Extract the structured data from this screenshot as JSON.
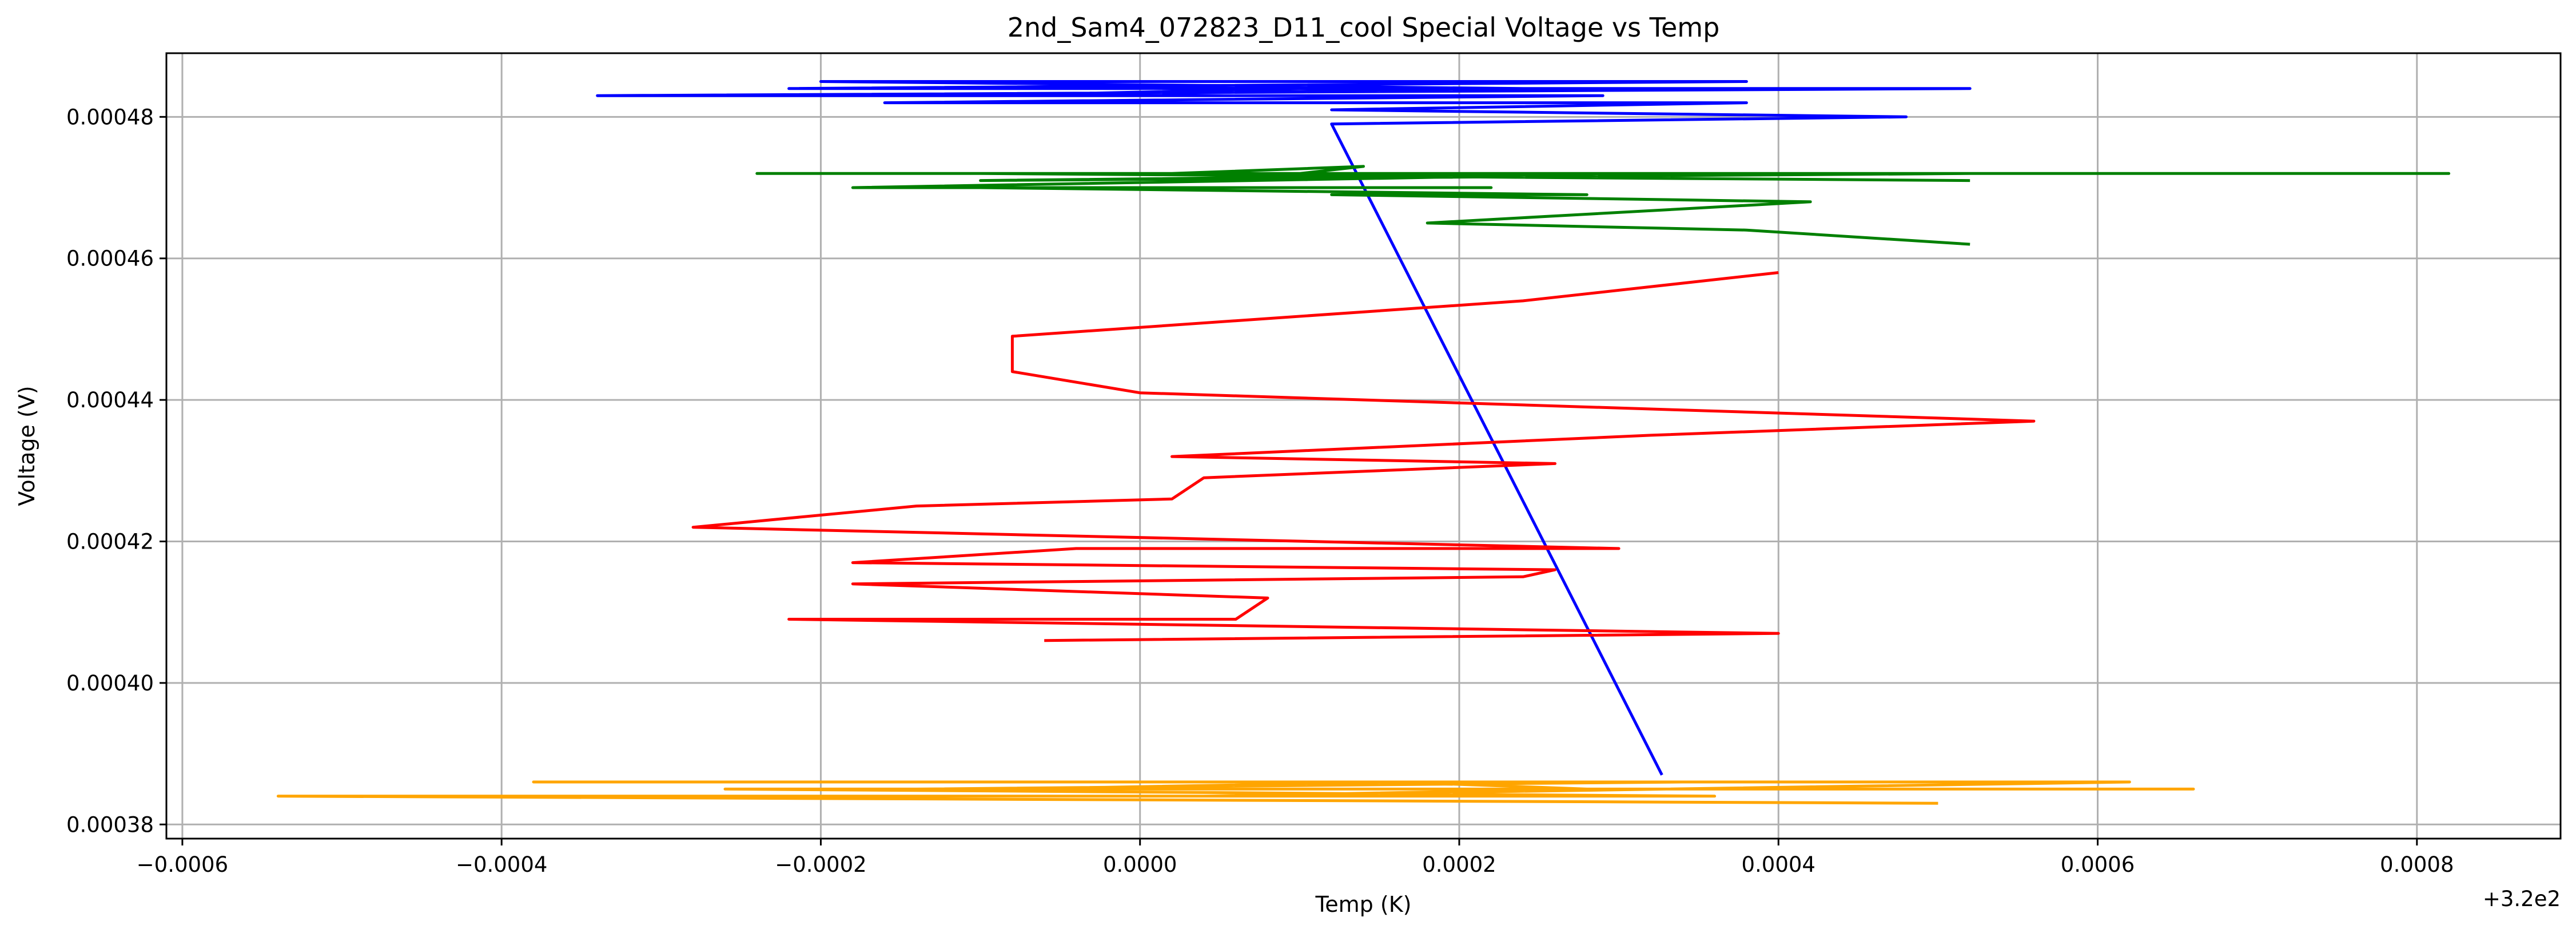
{
  "chart_data": {
    "type": "line",
    "title": "2nd_Sam4_072823_D11_cool Special Voltage vs Temp",
    "xlabel": "Temp (K)",
    "ylabel": "Voltage (V)",
    "x_offset_label": "+3.2e2",
    "xlim": [
      -0.00061,
      0.00089
    ],
    "ylim": [
      0.000378,
      0.000489
    ],
    "grid": true,
    "x_ticks": [
      {
        "value": -0.0006,
        "label": "−0.0006"
      },
      {
        "value": -0.0004,
        "label": "−0.0004"
      },
      {
        "value": -0.0002,
        "label": "−0.0002"
      },
      {
        "value": 0.0,
        "label": "0.0000"
      },
      {
        "value": 0.0002,
        "label": "0.0002"
      },
      {
        "value": 0.0004,
        "label": "0.0004"
      },
      {
        "value": 0.0006,
        "label": "0.0006"
      },
      {
        "value": 0.0008,
        "label": "0.0008"
      }
    ],
    "y_ticks": [
      {
        "value": 0.00038,
        "label": "0.00038"
      },
      {
        "value": 0.0004,
        "label": "0.00040"
      },
      {
        "value": 0.00042,
        "label": "0.00042"
      },
      {
        "value": 0.00044,
        "label": "0.00044"
      },
      {
        "value": 0.00046,
        "label": "0.00046"
      },
      {
        "value": 0.00048,
        "label": "0.00048"
      }
    ],
    "series": [
      {
        "name": "blue",
        "color": "#0000ff",
        "points": [
          [
            0.000327,
            0.000387
          ],
          [
            0.00012,
            0.000479
          ],
          [
            0.00048,
            0.00048
          ],
          [
            0.00012,
            0.000481
          ],
          [
            0.00038,
            0.000482
          ],
          [
            -0.00016,
            0.000482
          ],
          [
            0.00029,
            0.000483
          ],
          [
            -0.00034,
            0.000483
          ],
          [
            0.00052,
            0.000484
          ],
          [
            -0.00022,
            0.000484
          ],
          [
            0.00038,
            0.000485
          ],
          [
            -0.0002,
            0.000485
          ],
          [
            0.00024,
            0.000484
          ],
          [
            -0.0001,
            0.000483
          ],
          [
            0.0001,
            0.000484
          ],
          [
            -0.00012,
            0.000485
          ]
        ]
      },
      {
        "name": "green",
        "color": "#008000",
        "points": [
          [
            0.00052,
            0.000462
          ],
          [
            0.00038,
            0.000464
          ],
          [
            0.00018,
            0.000465
          ],
          [
            0.00042,
            0.000468
          ],
          [
            0.00012,
            0.000469
          ],
          [
            0.00028,
            0.000469
          ],
          [
            -0.0001,
            0.00047
          ],
          [
            0.00022,
            0.00047
          ],
          [
            -0.00018,
            0.00047
          ],
          [
            0.00032,
            0.000472
          ],
          [
            -0.0001,
            0.000471
          ],
          [
            0.00052,
            0.000472
          ],
          [
            -0.00024,
            0.000472
          ],
          [
            0.00082,
            0.000472
          ],
          [
            0.0001,
            0.000472
          ],
          [
            0.00014,
            0.000473
          ],
          [
            2e-05,
            0.000472
          ],
          [
            0.00032,
            0.000472
          ],
          [
            -0.0001,
            0.000472
          ],
          [
            0.00052,
            0.000471
          ]
        ]
      },
      {
        "name": "red",
        "color": "#ff0000",
        "points": [
          [
            -6e-05,
            0.000406
          ],
          [
            0.0004,
            0.000407
          ],
          [
            -0.00022,
            0.000409
          ],
          [
            6e-05,
            0.000409
          ],
          [
            8e-05,
            0.000412
          ],
          [
            -0.00018,
            0.000414
          ],
          [
            0.00024,
            0.000415
          ],
          [
            0.00026,
            0.000416
          ],
          [
            -0.00018,
            0.000417
          ],
          [
            -4e-05,
            0.000419
          ],
          [
            0.0003,
            0.000419
          ],
          [
            -0.00028,
            0.000422
          ],
          [
            -0.00014,
            0.000425
          ],
          [
            2e-05,
            0.000426
          ],
          [
            4e-05,
            0.000429
          ],
          [
            0.00026,
            0.000431
          ],
          [
            2e-05,
            0.000432
          ],
          [
            0.00032,
            0.000435
          ],
          [
            0.00056,
            0.000437
          ],
          [
            0.0,
            0.000441
          ],
          [
            -8e-05,
            0.000444
          ],
          [
            -8e-05,
            0.000449
          ],
          [
            0.00024,
            0.000454
          ],
          [
            0.0004,
            0.000458
          ]
        ]
      },
      {
        "name": "orange",
        "color": "#ffa500",
        "points": [
          [
            0.0005,
            0.000383
          ],
          [
            -0.00054,
            0.000384
          ],
          [
            0.00036,
            0.000384
          ],
          [
            -0.00026,
            0.000385
          ],
          [
            0.00066,
            0.000385
          ],
          [
            -0.00014,
            0.000385
          ],
          [
            0.00034,
            0.000386
          ],
          [
            -0.00038,
            0.000386
          ],
          [
            0.00062,
            0.000386
          ],
          [
            4e-05,
            0.000384
          ],
          [
            0.00028,
            0.000385
          ],
          [
            0.00016,
            0.000386
          ],
          [
            -8e-05,
            0.000385
          ]
        ]
      }
    ]
  }
}
